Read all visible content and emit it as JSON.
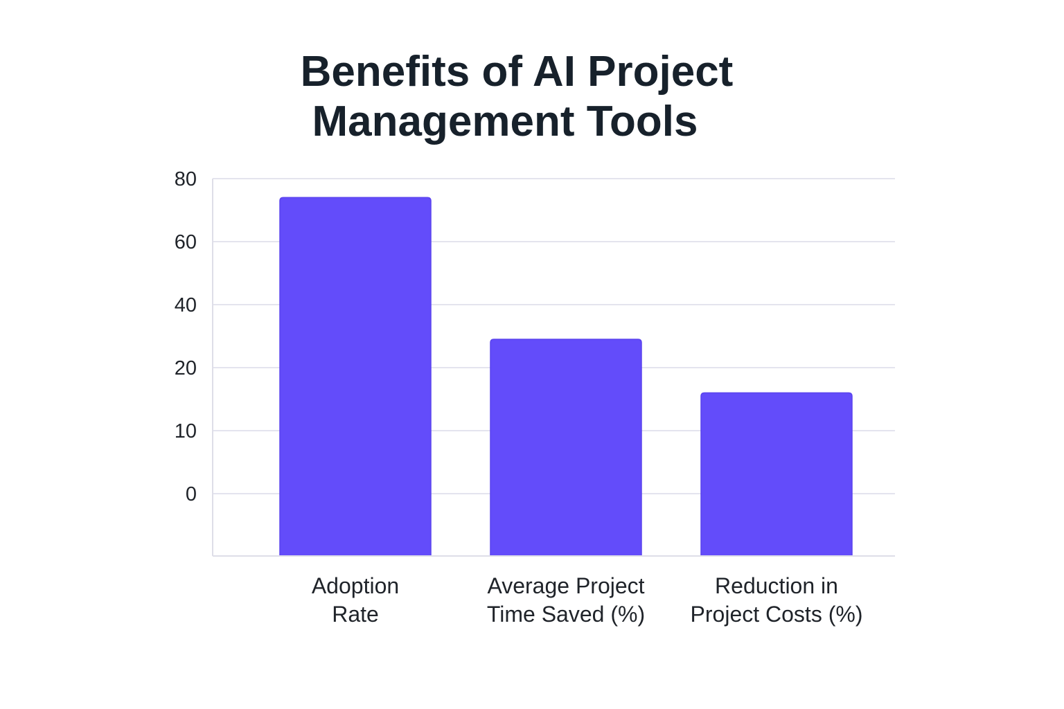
{
  "chart_data": {
    "type": "bar",
    "title_lines": [
      "Benefits of AI Project",
      "Management Tools"
    ],
    "title": "Benefits of AI Project Management Tools",
    "categories": [
      {
        "label_lines": [
          "Adoption",
          "Rate"
        ]
      },
      {
        "label_lines": [
          "Average Project",
          "Time Saved (%)"
        ]
      },
      {
        "label_lines": [
          "Reduction in",
          "Project Costs (%)"
        ]
      }
    ],
    "values": [
      74,
      29,
      16
    ],
    "y_ticks": [
      {
        "label": "80",
        "value": 80
      },
      {
        "label": "60",
        "value": 60
      },
      {
        "label": "40",
        "value": 40
      },
      {
        "label": "20",
        "value": 20
      },
      {
        "label": "10",
        "value": 10
      },
      {
        "label": "0",
        "value": 0
      }
    ],
    "xlabel": "",
    "ylabel": "",
    "grid": true,
    "legend": "none",
    "colors": {
      "bar": "#634cfa",
      "bar_edge": "#5a43ee",
      "grid": "#e4e4ee",
      "text": "#1f2329",
      "title": "#17212b"
    }
  }
}
